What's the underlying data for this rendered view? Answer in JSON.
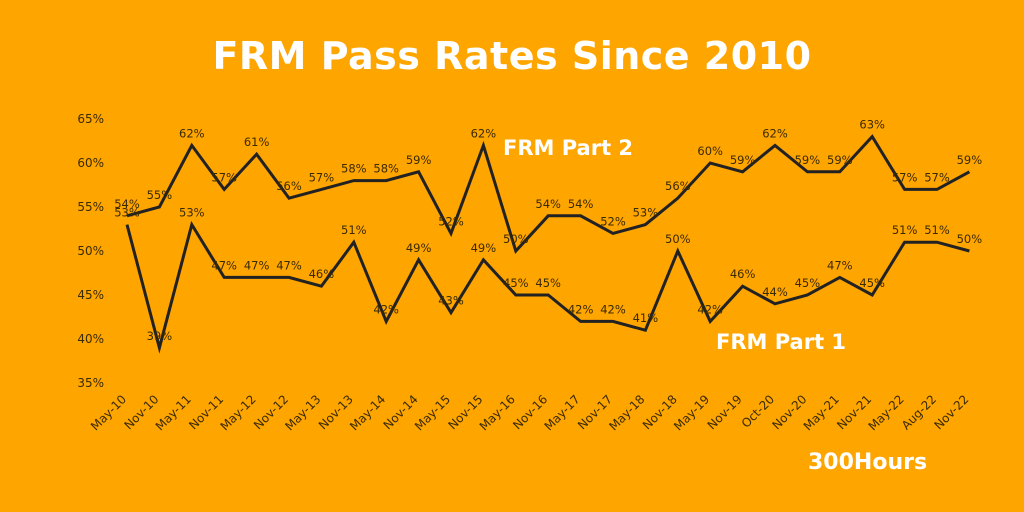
{
  "title": "FRM Pass Rates Since 2010",
  "brand": "300Hours",
  "chart_data": {
    "type": "line",
    "title": "FRM Pass Rates Since 2010",
    "ylim": [
      35,
      65
    ],
    "yticks": [
      "35%",
      "40%",
      "45%",
      "50%",
      "55%",
      "60%",
      "65%"
    ],
    "grid": false,
    "line_color": "#222222",
    "categories": [
      "May-10",
      "Nov-10",
      "May-11",
      "Nov-11",
      "May-12",
      "Nov-12",
      "May-13",
      "Nov-13",
      "May-14",
      "Nov-14",
      "May-15",
      "Nov-15",
      "May-16",
      "Nov-16",
      "May-17",
      "Nov-17",
      "May-18",
      "Nov-18",
      "May-19",
      "Nov-19",
      "Oct-20",
      "Nov-20",
      "May-21",
      "Nov-21",
      "May-22",
      "Aug-22",
      "Nov-22"
    ],
    "series": [
      {
        "name": "FRM Part 2",
        "values": [
          54,
          55,
          62,
          57,
          61,
          56,
          57,
          58,
          58,
          59,
          52,
          62,
          50,
          54,
          54,
          52,
          53,
          56,
          60,
          59,
          62,
          59,
          59,
          63,
          57,
          57,
          59
        ]
      },
      {
        "name": "FRM Part 1",
        "values": [
          53,
          39,
          53,
          47,
          47,
          47,
          46,
          51,
          42,
          49,
          43,
          49,
          45,
          45,
          42,
          42,
          41,
          50,
          42,
          46,
          44,
          45,
          47,
          45,
          51,
          51,
          50
        ]
      }
    ]
  }
}
